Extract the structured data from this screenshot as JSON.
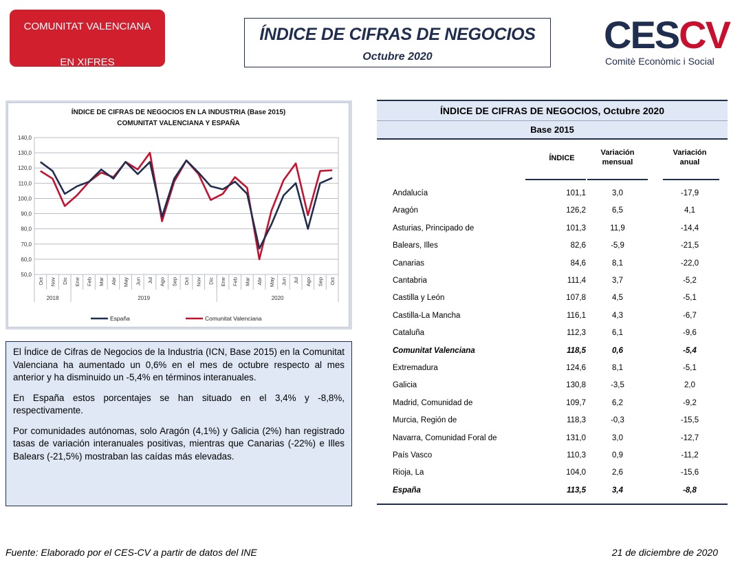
{
  "badge": {
    "line1": "COMUNITAT VALENCIANA",
    "line2": "EN XIFRES",
    "color": "#d11f2e"
  },
  "title": {
    "main": "ÍNDICE DE CIFRAS DE NEGOCIOS",
    "sub": "Octubre 2020"
  },
  "logo": {
    "word_part1": "CES",
    "word_part2": "CV",
    "subtitle": "Comitè Econòmic i Social",
    "navy": "#1f2d4e",
    "red": "#c8102e"
  },
  "chart_data": {
    "type": "line",
    "title": "ÍNDICE DE CIFRAS DE NEGOCIOS EN LA INDUSTRIA (Base 2015)",
    "subtitle": "COMUNITAT VALENCIANA Y ESPAÑA",
    "categories": [
      "Oct",
      "Nov",
      "Dic",
      "Ene",
      "Feb",
      "Mar",
      "Abr",
      "May",
      "Jun",
      "Jul",
      "Ago",
      "Sep",
      "Oct",
      "Nov",
      "Dic",
      "Ene",
      "Feb",
      "Mar",
      "Abr",
      "May",
      "Jun",
      "Jul",
      "Ago",
      "Sep",
      "Oct"
    ],
    "year_groups": [
      {
        "label": "2018",
        "months": 3
      },
      {
        "label": "2019",
        "months": 12
      },
      {
        "label": "2020",
        "months": 10
      }
    ],
    "series": [
      {
        "name": "España",
        "color": "#1f2d4e",
        "values": [
          124,
          118,
          103,
          108,
          111,
          119,
          113,
          124,
          116,
          124,
          88,
          113,
          125,
          117,
          108,
          106,
          111,
          103,
          67,
          83,
          102,
          110,
          80,
          110,
          113.5
        ]
      },
      {
        "name": "Comunitat Valenciana",
        "color": "#c8102e",
        "values": [
          118,
          113,
          95,
          102,
          111,
          117,
          114,
          124,
          119,
          130,
          85,
          111,
          125,
          116,
          99,
          103,
          114,
          107,
          60,
          92,
          112,
          123,
          89,
          118,
          118.5
        ]
      }
    ],
    "ylim": [
      50,
      140
    ],
    "yticks": [
      "50,0",
      "60,0",
      "70,0",
      "80,0",
      "90,0",
      "100,0",
      "110,0",
      "120,0",
      "130,0",
      "140,0"
    ],
    "grid": true,
    "legend": "bottom"
  },
  "text": {
    "p1": "El Índice de Cifras de Negocios de la Industria (ICN, Base 2015) en la Comunitat Valenciana ha aumentado un 0,6% en el mes de octubre respecto al mes anterior y ha disminuido un -5,4% en términos interanuales.",
    "p2": "En España estos porcentajes se han situado en el 3,4% y -8,8%, respectivamente.",
    "p3": "Por comunidades autónomas, solo Aragón (4,1%) y Galicia (2%) han registrado tasas de variación interanuales positivas, mientras que Canarias (-22%) e Illes Balears (-21,5%) mostraban las caídas más elevadas."
  },
  "table": {
    "title": "ÍNDICE DE CIFRAS DE NEGOCIOS, Octubre 2020",
    "base": "Base 2015",
    "columns": [
      "ÍNDICE",
      "Variación mensual",
      "Variación anual"
    ],
    "col_lines": [
      [
        "Variación",
        "mensual"
      ],
      [
        "Variación",
        "anual"
      ]
    ],
    "rows": [
      {
        "region": "Andalucía",
        "indice": "101,1",
        "mensual": "3,0",
        "anual": "-17,9"
      },
      {
        "region": "Aragón",
        "indice": "126,2",
        "mensual": "6,5",
        "anual": "4,1"
      },
      {
        "region": "Asturias, Principado de",
        "indice": "101,3",
        "mensual": "11,9",
        "anual": "-14,4"
      },
      {
        "region": "Balears, Illes",
        "indice": "82,6",
        "mensual": "-5,9",
        "anual": "-21,5"
      },
      {
        "region": "Canarias",
        "indice": "84,6",
        "mensual": "8,1",
        "anual": "-22,0"
      },
      {
        "region": "Cantabria",
        "indice": "111,4",
        "mensual": "3,7",
        "anual": "-5,2"
      },
      {
        "region": "Castilla y León",
        "indice": "107,8",
        "mensual": "4,5",
        "anual": "-5,1"
      },
      {
        "region": "Castilla-La Mancha",
        "indice": "116,1",
        "mensual": "4,3",
        "anual": "-6,7"
      },
      {
        "region": "Cataluña",
        "indice": "112,3",
        "mensual": "6,1",
        "anual": "-9,6"
      },
      {
        "region": "Comunitat Valenciana",
        "indice": "118,5",
        "mensual": "0,6",
        "anual": "-5,4"
      },
      {
        "region": "Extremadura",
        "indice": "124,6",
        "mensual": "8,1",
        "anual": "-5,1"
      },
      {
        "region": "Galicia",
        "indice": "130,8",
        "mensual": "-3,5",
        "anual": "2,0"
      },
      {
        "region": "Madrid, Comunidad de",
        "indice": "109,7",
        "mensual": "6,2",
        "anual": "-9,2"
      },
      {
        "region": "Murcia, Región de",
        "indice": "118,3",
        "mensual": "-0,3",
        "anual": "-15,5"
      },
      {
        "region": "Navarra, Comunidad Foral de",
        "indice": "131,0",
        "mensual": "3,0",
        "anual": "-12,7"
      },
      {
        "region": "País Vasco",
        "indice": "110,3",
        "mensual": "0,9",
        "anual": "-11,2"
      },
      {
        "region": "Rioja, La",
        "indice": "104,0",
        "mensual": "2,6",
        "anual": "-15,6"
      },
      {
        "region": "España",
        "indice": "113,5",
        "mensual": "3,4",
        "anual": "-8,8"
      }
    ],
    "bold_rows": [
      "Comunitat Valenciana",
      "España"
    ]
  },
  "footer": {
    "source": "Fuente: Elaborado por el CES-CV a partir de datos del INE",
    "date": "21 de diciembre de 2020"
  }
}
